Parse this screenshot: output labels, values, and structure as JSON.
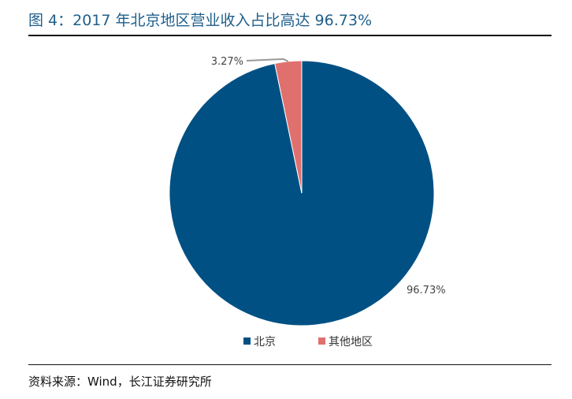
{
  "title": "图 4：2017 年北京地区营业收入占比高达 96.73%",
  "source": "资料来源：Wind，长江证券研究所",
  "colors": {
    "title": "#1f5f8b",
    "beijing": "#005083",
    "others": "#e0706e",
    "leader": "#999999"
  },
  "chart_data": {
    "type": "pie",
    "title": "",
    "labels": [
      "北京",
      "其他地区"
    ],
    "values": [
      96.73,
      3.27
    ],
    "data_labels": [
      "96.73%",
      "3.27%"
    ],
    "legend": {
      "position": "bottom",
      "entries": [
        "北京",
        "其他地区"
      ]
    }
  }
}
